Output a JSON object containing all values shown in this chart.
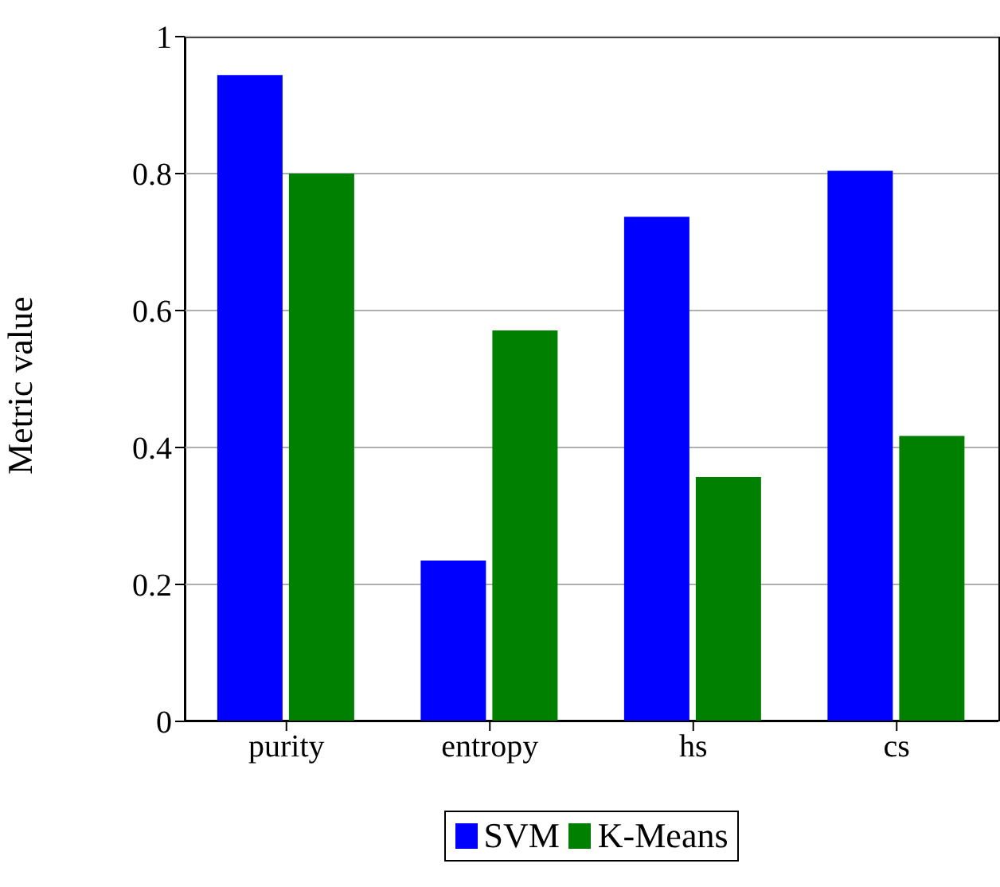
{
  "chart_data": {
    "type": "bar",
    "ylabel": "Metric value",
    "categories": [
      "purity",
      "entropy",
      "hs",
      "cs"
    ],
    "series": [
      {
        "name": "SVM",
        "color": "#0000ff",
        "values": [
          0.944,
          0.235,
          0.737,
          0.804
        ]
      },
      {
        "name": "K-Means",
        "color": "#008000",
        "values": [
          0.8,
          0.571,
          0.357,
          0.417
        ]
      }
    ],
    "ylim": [
      0,
      1
    ],
    "yticks": [
      0,
      0.2,
      0.4,
      0.6,
      0.8,
      1
    ],
    "grid": "y",
    "legend": "bottom"
  }
}
